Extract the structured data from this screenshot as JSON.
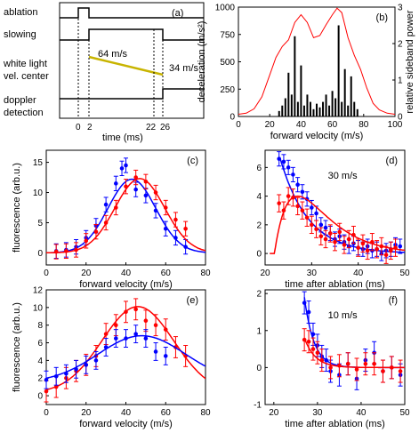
{
  "chart_data": [
    {
      "panel": "(a)",
      "type": "line",
      "row_labels": [
        "ablation",
        "slowing",
        "white light",
        "vel. center",
        "doppler",
        "detection"
      ],
      "xlabel": "time (ms)",
      "xticks": [
        "0",
        "2",
        "22",
        "26"
      ],
      "annotations": [
        "64 m/s",
        "34 m/s"
      ]
    },
    {
      "panel": "(b)",
      "type": "bar",
      "xlabel": "forward velocity (m/s)",
      "ylabel": "deceleration (m/s²)",
      "y2label": "relative sideband power",
      "xlim": [
        0,
        100
      ],
      "ylim": [
        0,
        1000
      ],
      "y2lim": [
        0,
        3
      ],
      "xticks": [
        "0",
        "20",
        "40",
        "60",
        "80",
        "100"
      ],
      "yticks": [
        "0",
        "250",
        "500",
        "750",
        "1000"
      ],
      "y2ticks": [
        "0",
        "1",
        "2",
        "3"
      ],
      "curve": {
        "x": [
          0,
          5,
          10,
          15,
          20,
          24,
          28,
          32,
          36,
          40,
          44,
          48,
          52,
          56,
          60,
          63,
          66,
          70,
          74,
          78,
          82,
          86,
          90,
          95,
          100
        ],
        "y": [
          20,
          30,
          70,
          180,
          380,
          540,
          640,
          700,
          860,
          930,
          860,
          720,
          740,
          840,
          930,
          990,
          950,
          720,
          560,
          430,
          260,
          120,
          60,
          30,
          20
        ]
      },
      "bars": {
        "x": [
          26,
          28,
          30,
          32,
          34,
          36,
          38,
          40,
          42,
          44,
          46,
          48,
          50,
          52,
          54,
          56,
          58,
          60,
          62,
          64,
          66,
          68,
          70,
          72,
          74,
          76
        ],
        "values": [
          0.15,
          0.3,
          0.5,
          1.2,
          0.6,
          2.2,
          0.4,
          1.4,
          0.3,
          0.6,
          0.4,
          0.2,
          0.35,
          0.25,
          0.4,
          0.6,
          0.3,
          0.7,
          0.5,
          2.5,
          0.4,
          1.3,
          0.3,
          1.1,
          0.4,
          0.2
        ]
      }
    },
    {
      "panel": "(c)",
      "type": "scatter",
      "xlabel": "forward velocity (m/s)",
      "ylabel": "fluorescence (arb.u.)",
      "xlim": [
        0,
        80
      ],
      "ylim": [
        -2,
        17
      ],
      "xticks": [
        "0",
        "20",
        "40",
        "60",
        "80"
      ],
      "yticks": [
        "0",
        "5",
        "10",
        "15"
      ],
      "series": [
        {
          "color": "#0000ff",
          "x": [
            5,
            10,
            15,
            20,
            25,
            30,
            35,
            38,
            40,
            45,
            50,
            55,
            60,
            65,
            70
          ],
          "y": [
            0.3,
            0.5,
            1.0,
            2.5,
            4.5,
            8.0,
            11.5,
            14.0,
            14.5,
            10.5,
            9.5,
            7.0,
            4.0,
            2.5,
            1.0
          ],
          "err": 1.2,
          "fit": {
            "amp": 12.2,
            "center": 43,
            "sigma": 12
          }
        },
        {
          "color": "#ff0000",
          "x": [
            5,
            10,
            15,
            20,
            25,
            30,
            35,
            40,
            45,
            50,
            55,
            60,
            65,
            70
          ],
          "y": [
            0.2,
            0.3,
            0.5,
            2.0,
            3.5,
            5.0,
            7.5,
            11.0,
            12.5,
            11.8,
            10.0,
            7.5,
            5.5,
            4.0
          ],
          "err": 1.2,
          "fit": {
            "amp": 12.3,
            "center": 47,
            "sigma": 12.5
          }
        }
      ]
    },
    {
      "panel": "(d)",
      "type": "scatter",
      "xlabel": "time after ablation (ms)",
      "xlim": [
        20,
        50
      ],
      "ylim": [
        -0.8,
        7.2
      ],
      "xticks": [
        "20",
        "30",
        "40",
        "50"
      ],
      "yticks": [
        "0",
        "2",
        "4",
        "6"
      ],
      "annotation": "30 m/s",
      "series": [
        {
          "color": "#0000ff",
          "x": [
            23,
            24,
            25,
            26,
            27,
            28,
            29,
            30,
            31,
            32,
            33,
            34,
            35,
            36,
            37,
            38,
            39,
            40,
            41,
            42,
            43,
            44,
            45,
            46,
            47,
            48,
            49
          ],
          "y": [
            6.6,
            6.4,
            6.0,
            5.5,
            4.8,
            4.3,
            3.8,
            3.2,
            2.8,
            2.0,
            1.8,
            1.4,
            1.0,
            1.2,
            0.8,
            0.5,
            0.7,
            0.4,
            0.3,
            0.5,
            0.2,
            0.3,
            0.0,
            0.2,
            0.3,
            0.6,
            0.5
          ],
          "err": 0.5,
          "fit": {
            "type": "decay",
            "amp": 6.9,
            "t0": 23,
            "tau": 6
          }
        },
        {
          "color": "#ff0000",
          "x": [
            23,
            24,
            25,
            26,
            27,
            28,
            29,
            30,
            31,
            32,
            33,
            34,
            35,
            36,
            37,
            38,
            39,
            40,
            41,
            42,
            43,
            44,
            45,
            46,
            47,
            48
          ],
          "y": [
            3.5,
            3.0,
            4.0,
            3.9,
            3.3,
            3.0,
            2.5,
            2.0,
            1.7,
            1.2,
            1.0,
            1.4,
            0.8,
            1.5,
            0.6,
            1.0,
            1.3,
            0.4,
            0.7,
            0.2,
            0.8,
            0.3,
            0.5,
            -0.1,
            0.2,
            0.4
          ],
          "err": 0.6,
          "fit": {
            "type": "rise-decay",
            "amp": 4.0,
            "t0": 22,
            "tau": 5
          }
        }
      ]
    },
    {
      "panel": "(e)",
      "type": "scatter",
      "xlabel": "forward velocity (m/s)",
      "ylabel": "fluorescence (arb.u.)",
      "xlim": [
        0,
        80
      ],
      "ylim": [
        -1,
        12
      ],
      "xticks": [
        "0",
        "20",
        "40",
        "60",
        "80"
      ],
      "yticks": [
        "0",
        "2",
        "4",
        "6",
        "8",
        "10",
        "12"
      ],
      "series": [
        {
          "color": "#ff0000",
          "x": [
            0,
            5,
            10,
            15,
            20,
            25,
            30,
            35,
            40,
            45,
            50,
            55,
            60,
            65,
            70
          ],
          "y": [
            0.5,
            1.0,
            2.0,
            2.8,
            3.5,
            4.5,
            7.0,
            8.0,
            9.5,
            9.8,
            8.5,
            8.0,
            7.5,
            5.5,
            4.5
          ],
          "err": 1.2,
          "fit": {
            "amp": 9.8,
            "center": 46,
            "sigma": 18,
            "offset": 0.3
          }
        },
        {
          "color": "#0000ff",
          "x": [
            0,
            5,
            10,
            15,
            20,
            25,
            30,
            35,
            40,
            45,
            50,
            55,
            60
          ],
          "y": [
            1.8,
            2.2,
            2.5,
            3.0,
            3.5,
            4.0,
            5.5,
            6.5,
            6.5,
            7.0,
            6.5,
            5.0,
            4.5
          ],
          "err": 1.0,
          "fit": {
            "amp": 5.3,
            "center": 48,
            "sigma": 22,
            "offset": 1.5
          }
        }
      ]
    },
    {
      "panel": "(f)",
      "type": "scatter",
      "xlabel": "time after ablation (ms)",
      "xlim": [
        18,
        50
      ],
      "ylim": [
        -1,
        2.1
      ],
      "xticks": [
        "20",
        "30",
        "40",
        "50"
      ],
      "yticks": [
        "-1",
        "0",
        "1",
        "2"
      ],
      "annotation": "10 m/s",
      "series": [
        {
          "color": "#0000ff",
          "x": [
            27,
            28,
            29,
            30,
            31,
            32,
            33,
            35,
            37,
            39,
            41,
            43,
            45,
            47,
            49
          ],
          "y": [
            1.75,
            1.5,
            0.9,
            0.6,
            0.3,
            0.2,
            -0.1,
            -0.2,
            0.1,
            -0.3,
            0.2,
            0.4,
            -0.1,
            0.0,
            -0.2
          ],
          "err": 0.3,
          "fit": {
            "type": "decay",
            "amp": 1.9,
            "t0": 27,
            "tau": 2.2
          }
        },
        {
          "color": "#ff0000",
          "x": [
            27,
            28,
            29,
            30,
            31,
            33,
            35,
            37,
            39,
            41,
            43,
            45,
            47,
            49
          ],
          "y": [
            0.75,
            0.7,
            0.5,
            0.4,
            0.2,
            0.0,
            0.05,
            0.1,
            -0.05,
            0.1,
            0.1,
            -0.1,
            0.0,
            -0.1
          ],
          "err": 0.3,
          "fit": {
            "type": "decay",
            "amp": 0.8,
            "t0": 27,
            "tau": 2.5
          }
        }
      ]
    }
  ]
}
